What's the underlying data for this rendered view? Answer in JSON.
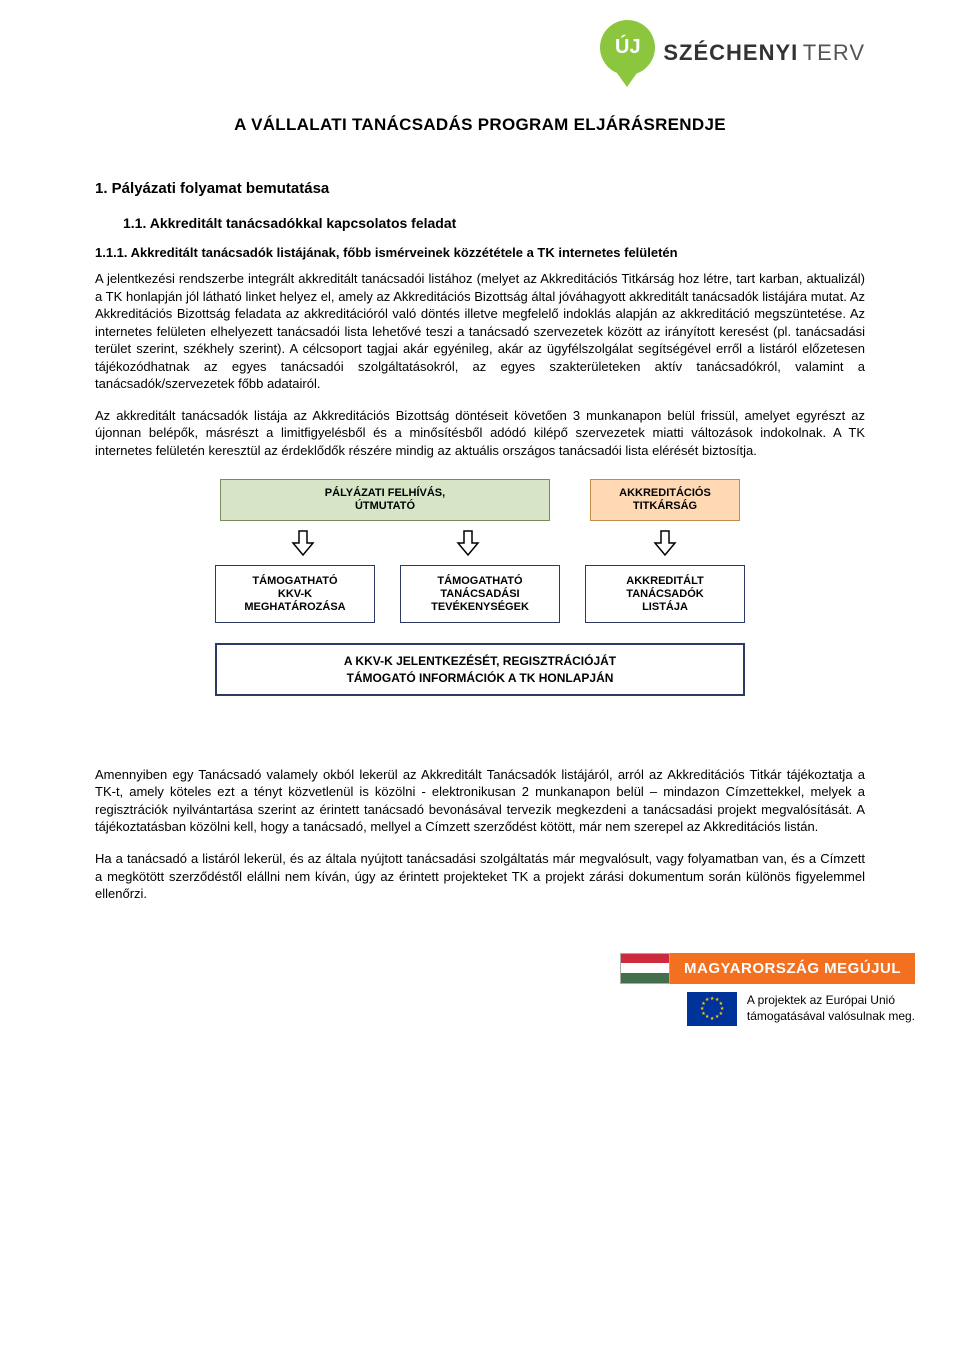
{
  "header": {
    "logo_badge": "ÚJ",
    "logo_main": "SZÉCHENYI",
    "logo_sub": "TERV",
    "logo_color": "#8cc63f"
  },
  "title": "A VÁLLALATI TANÁCSADÁS PROGRAM ELJÁRÁSRENDJE",
  "h1": "1.  Pályázati folyamat bemutatása",
  "h2": "1.1.  Akkreditált tanácsadókkal kapcsolatos feladat",
  "h3": "1.1.1.  Akkreditált tanácsadók listájának, főbb ismérveinek közzététele a TK internetes felületén",
  "para1": "A jelentkezési rendszerbe integrált akkreditált tanácsadói listához (melyet az Akkreditációs Titkárság hoz létre, tart karban, aktualizál) a TK honlapján jól látható linket helyez el, amely az Akkreditációs Bizottság által jóváhagyott akkreditált tanácsadók listájára mutat. Az Akkreditációs Bizottság feladata az akkreditációról való döntés illetve megfelelő indoklás alapján az akkreditáció megszüntetése. Az internetes felületen elhelyezett tanácsadói lista lehetővé teszi a tanácsadó szervezetek között az irányított keresést (pl. tanácsadási terület szerint, székhely szerint). A célcsoport tagjai akár egyénileg, akár az ügyfélszolgálat segítségével erről a listáról előzetesen tájékozódhatnak az egyes tanácsadói szolgáltatásokról, az egyes szakterületeken aktív tanácsadókról, valamint a tanácsadók/szervezetek főbb adatairól.",
  "para2": "Az akkreditált tanácsadók listája az Akkreditációs Bizottság döntéseit követően 3 munkanapon belül frissül, amelyet egyrészt az újonnan belépők, másrészt a limitfigyelésből és a minősítésből adódó kilépő szervezetek miatti változások indokolnak. A TK internetes felületén keresztül az érdeklődők részére mindig az aktuális országos tanácsadói lista elérését biztosítja.",
  "flowchart": {
    "top_left": {
      "line1": "PÁLYÁZATI FELHÍVÁS,",
      "line2": "ÚTMUTATÓ",
      "bg": "#d7e5c6",
      "border": "#7b8a5f"
    },
    "top_right": {
      "line1": "AKKREDITÁCIÓS",
      "line2": "TITKÁRSÁG",
      "bg": "#ffd9b3",
      "border": "#c48a4a"
    },
    "arrow_stroke": "#000000",
    "arrow_fill": "#ffffff",
    "mid": {
      "box1": {
        "line1": "TÁMOGATHATÓ",
        "line2": "KKV-K",
        "line3": "MEGHATÁROZÁSA"
      },
      "box2": {
        "line1": "TÁMOGATHATÓ",
        "line2": "TANÁCSADÁSI",
        "line3": "TEVÉKENYSÉGEK"
      },
      "box3": {
        "line1": "AKKREDITÁLT",
        "line2": "TANÁCSADÓK",
        "line3": "LISTÁJA"
      },
      "border": "#2d3a66"
    },
    "bottom": {
      "line1": "A KKV-K JELENTKEZÉSÉT, REGISZTRÁCIÓJÁT",
      "line2": "TÁMOGATÓ INFORMÁCIÓK A TK HONLAPJÁN",
      "border": "#2d3a66"
    }
  },
  "para3": "Amennyiben egy Tanácsadó valamely okból lekerül az Akkreditált Tanácsadók listájáról, arról az Akkreditációs Titkár tájékoztatja a TK-t, amely köteles ezt a tényt közvetlenül is közölni - elektronikusan 2 munkanapon belül – mindazon Címzettekkel, melyek a regisztrációk nyilvántartása szerint az érintett tanácsadó bevonásával tervezik megkezdeni a tanácsadási projekt megvalósítását. A tájékoztatásban közölni kell, hogy a tanácsadó, mellyel a Címzett szerződést kötött, már nem szerepel az Akkreditációs listán.",
  "para4": "Ha a tanácsadó a listáról lekerül, és az általa nyújtott tanácsadási szolgáltatás már megvalósult, vagy folyamatban van, és a Címzett a megkötött szerződéstől elállni nem kíván, úgy az érintett projekteket TK a projekt zárási dokumentum során különös figyelemmel ellenőrzi.",
  "footer": {
    "flag_red": "#cd2a3e",
    "flag_white": "#ffffff",
    "flag_green": "#436f4d",
    "banner_bg": "#f37021",
    "banner_text": "MAGYARORSZÁG MEGÚJUL",
    "eu_bg": "#003399",
    "eu_star": "#ffcc00",
    "line1": "A projektek az Európai Unió",
    "line2": "támogatásával valósulnak meg."
  }
}
